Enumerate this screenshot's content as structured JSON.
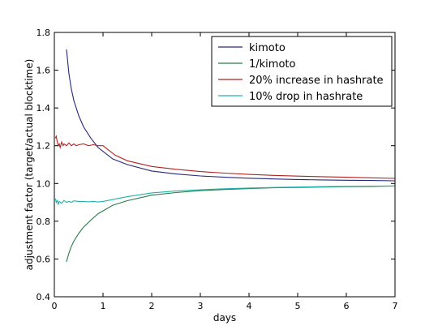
{
  "chart_data": {
    "type": "line",
    "xlabel": "days",
    "ylabel": "adjustment factor (target/actual blocktime)",
    "xlim": [
      0,
      7
    ],
    "ylim": [
      0.4,
      1.8
    ],
    "xticks": [
      "0",
      "1",
      "2",
      "3",
      "4",
      "5",
      "6",
      "7"
    ],
    "yticks": [
      "0.4",
      "0.6",
      "0.8",
      "1.0",
      "1.2",
      "1.4",
      "1.6",
      "1.8"
    ],
    "grid": false,
    "legend_position": "upper-right",
    "series": [
      {
        "name": "kimoto",
        "color": "#27277a",
        "x": [
          0.25,
          0.3,
          0.35,
          0.4,
          0.5,
          0.6,
          0.75,
          0.9,
          1.0,
          1.2,
          1.5,
          2.0,
          2.5,
          3.0,
          3.5,
          4.0,
          4.5,
          5.0,
          5.5,
          6.0,
          6.5,
          7.0
        ],
        "y": [
          1.71,
          1.58,
          1.5,
          1.44,
          1.36,
          1.3,
          1.24,
          1.19,
          1.17,
          1.13,
          1.1,
          1.066,
          1.05,
          1.04,
          1.033,
          1.028,
          1.024,
          1.021,
          1.019,
          1.017,
          1.016,
          1.014
        ]
      },
      {
        "name": "1/kimoto",
        "color": "#2a7a4a",
        "x": [
          0.25,
          0.3,
          0.35,
          0.4,
          0.5,
          0.6,
          0.75,
          0.9,
          1.0,
          1.2,
          1.5,
          2.0,
          2.5,
          3.0,
          3.5,
          4.0,
          4.5,
          5.0,
          5.5,
          6.0,
          6.5,
          7.0
        ],
        "y": [
          0.585,
          0.632,
          0.667,
          0.694,
          0.735,
          0.769,
          0.806,
          0.84,
          0.855,
          0.885,
          0.909,
          0.938,
          0.952,
          0.962,
          0.968,
          0.973,
          0.977,
          0.979,
          0.981,
          0.983,
          0.984,
          0.986
        ]
      },
      {
        "name": "20% increase in hashrate",
        "color": "#b22222",
        "x": [
          0.02,
          0.04,
          0.06,
          0.08,
          0.1,
          0.12,
          0.15,
          0.18,
          0.2,
          0.25,
          0.3,
          0.35,
          0.4,
          0.45,
          0.5,
          0.6,
          0.7,
          0.8,
          0.9,
          1.0,
          1.1,
          1.25,
          1.5,
          2.0,
          2.5,
          3.0,
          3.5,
          4.0,
          4.5,
          5.0,
          5.5,
          6.0,
          6.5,
          7.0
        ],
        "y": [
          1.24,
          1.25,
          1.22,
          1.2,
          1.21,
          1.19,
          1.22,
          1.2,
          1.21,
          1.2,
          1.215,
          1.2,
          1.21,
          1.2,
          1.205,
          1.21,
          1.2,
          1.205,
          1.2,
          1.2,
          1.18,
          1.15,
          1.12,
          1.09,
          1.075,
          1.063,
          1.055,
          1.048,
          1.043,
          1.039,
          1.036,
          1.033,
          1.03,
          1.027
        ]
      },
      {
        "name": "10% drop in hashrate",
        "color": "#20b2aa",
        "x": [
          0.02,
          0.04,
          0.06,
          0.08,
          0.1,
          0.15,
          0.2,
          0.25,
          0.3,
          0.35,
          0.4,
          0.5,
          0.6,
          0.7,
          0.8,
          0.9,
          1.0,
          1.2,
          1.5,
          2.0,
          2.5,
          3.0,
          3.5,
          4.0,
          4.5,
          5.0,
          5.5,
          6.0,
          6.5,
          7.0
        ],
        "y": [
          0.92,
          0.9,
          0.91,
          0.89,
          0.905,
          0.895,
          0.91,
          0.9,
          0.905,
          0.9,
          0.908,
          0.905,
          0.905,
          0.903,
          0.905,
          0.902,
          0.905,
          0.915,
          0.93,
          0.95,
          0.96,
          0.967,
          0.972,
          0.976,
          0.979,
          0.981,
          0.983,
          0.985,
          0.986,
          0.987
        ]
      }
    ]
  }
}
